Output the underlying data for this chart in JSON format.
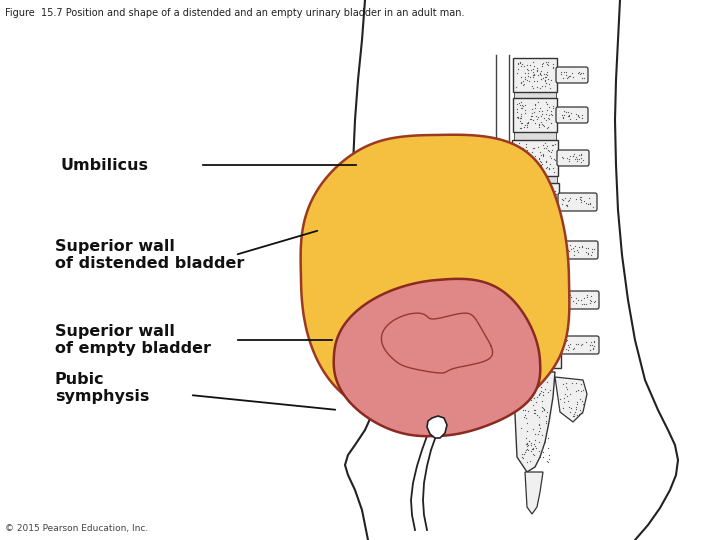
{
  "title": "Figure  15.7 Position and shape of a distended and an empty urinary bladder in an adult man.",
  "copyright": "© 2015 Pearson Education, Inc.",
  "bg_color": "#ffffff",
  "title_fontsize": 7,
  "label_fontsize": 11.5,
  "labels": {
    "umbilicus": "Umbilicus",
    "sup_wall_distended": "Superior wall\nof distended bladder",
    "sup_wall_empty": "Superior wall\nof empty bladder",
    "pubic": "Pubic\nsymphysis"
  },
  "distended_bladder_color": "#F5C040",
  "distended_bladder_edge": "#9B3A20",
  "empty_bladder_color": "#E08888",
  "empty_bladder_edge": "#8B2A20",
  "body_outline_color": "#222222",
  "line_color": "#111111"
}
